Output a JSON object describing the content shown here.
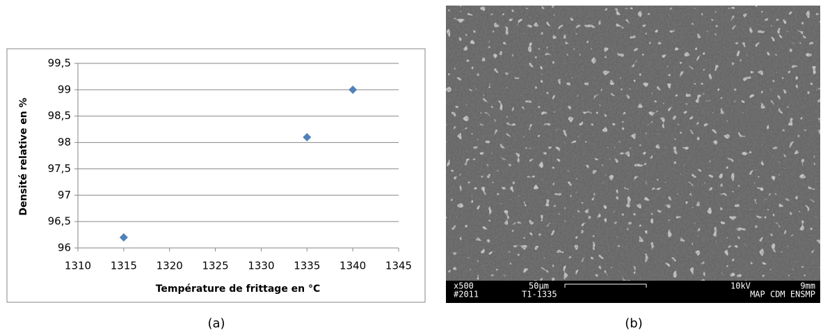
{
  "chart_data": {
    "type": "scatter",
    "x_label": "Température de frittage en °C",
    "y_label": "Densité relative en %",
    "x": [
      1315,
      1335,
      1340
    ],
    "values": [
      96.2,
      98.1,
      99
    ],
    "color": "#4f81bd",
    "xlim": [
      1310,
      1345
    ],
    "xticks": [
      1310,
      1315,
      1320,
      1325,
      1330,
      1335,
      1340,
      1345
    ],
    "ylim": [
      96,
      99.5
    ],
    "yticks": [
      96,
      {
        "value": 96.5,
        "label": "96,5"
      },
      97,
      {
        "value": 97.5,
        "label": "97,5"
      },
      98,
      {
        "value": 98.5,
        "label": "98,5"
      },
      99,
      {
        "value": 99.5,
        "label": "99,5"
      }
    ],
    "grid": true
  },
  "captions": [
    "(a)",
    "(b)"
  ],
  "micrograph": {
    "magnification": "x500",
    "number": "#2011",
    "scale": "50μm",
    "sample": "T1-1335",
    "voltage": "10kV",
    "distance": "9mm",
    "lab": "MAP CDM ENSMP"
  }
}
